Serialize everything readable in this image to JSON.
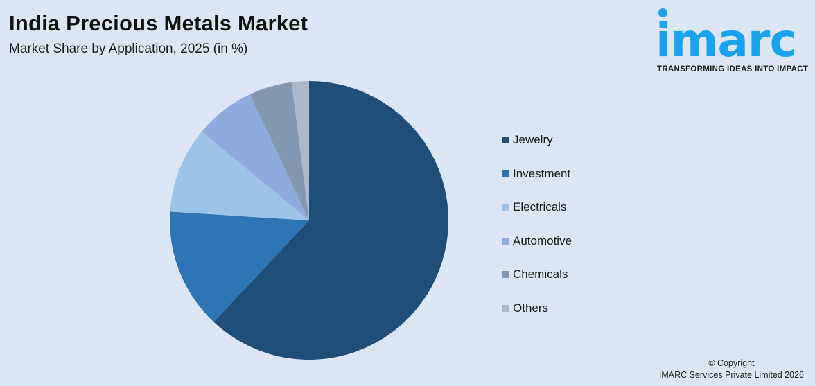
{
  "header": {
    "title": "India Precious Metals Market",
    "subtitle": "Market Share by Application, 2025 (in %)"
  },
  "logo": {
    "wordmark": "imarc",
    "tagline": "TRANSFORMING IDEAS INTO IMPACT",
    "color": "#1aa3ec"
  },
  "footer": {
    "line1": "© Copyright",
    "line2": "IMARC Services Private Limited 2026"
  },
  "chart_data": {
    "type": "pie",
    "title": "India Precious Metals Market",
    "subtitle": "Market Share by Application, 2025 (in %)",
    "categories": [
      "Jewelry",
      "Investment",
      "Electricals",
      "Automotive",
      "Chemicals",
      "Others"
    ],
    "values": [
      62,
      14,
      10,
      7,
      5,
      2
    ],
    "colors": [
      "#1f4e79",
      "#2e75b6",
      "#9dc3e6",
      "#8faadc",
      "#8497b0",
      "#adb9ca"
    ],
    "start_angle": "12 o'clock, clockwise",
    "legend_position": "right",
    "data_labels": false
  }
}
